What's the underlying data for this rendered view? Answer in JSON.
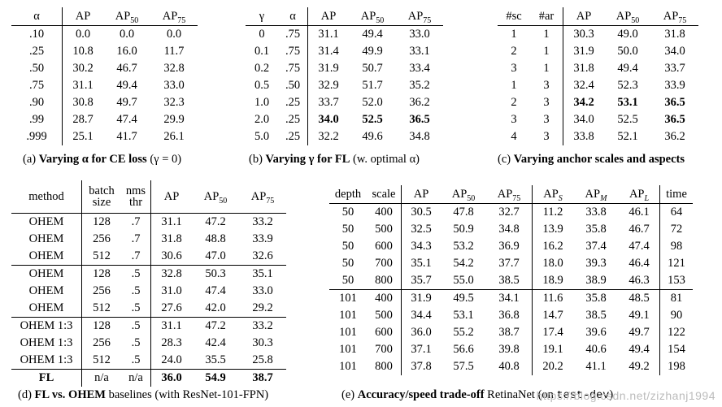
{
  "table_a": {
    "headers": [
      "α",
      "AP",
      "AP50",
      "AP75"
    ],
    "rows": [
      [
        ".10",
        "0.0",
        "0.0",
        "0.0"
      ],
      [
        ".25",
        "10.8",
        "16.0",
        "11.7"
      ],
      [
        ".50",
        "30.2",
        "46.7",
        "32.8"
      ],
      [
        ".75",
        "31.1",
        "49.4",
        "33.0"
      ],
      [
        ".90",
        "30.8",
        "49.7",
        "32.3"
      ],
      [
        ".99",
        "28.7",
        "47.4",
        "29.9"
      ],
      [
        ".999",
        "25.1",
        "41.7",
        "26.1"
      ]
    ],
    "caption_prefix": "(a) ",
    "caption_bold": "Varying α for CE loss",
    "caption_rest": " (γ = 0)"
  },
  "table_b": {
    "headers": [
      "γ",
      "α",
      "AP",
      "AP50",
      "AP75"
    ],
    "rows": [
      [
        "0",
        ".75",
        "31.1",
        "49.4",
        "33.0"
      ],
      [
        "0.1",
        ".75",
        "31.4",
        "49.9",
        "33.1"
      ],
      [
        "0.2",
        ".75",
        "31.9",
        "50.7",
        "33.4"
      ],
      [
        "0.5",
        ".50",
        "32.9",
        "51.7",
        "35.2"
      ],
      [
        "1.0",
        ".25",
        "33.7",
        "52.0",
        "36.2"
      ],
      [
        "2.0",
        ".25",
        "34.0",
        "52.5",
        "36.5"
      ],
      [
        "5.0",
        ".25",
        "32.2",
        "49.6",
        "34.8"
      ]
    ],
    "caption_prefix": "(b) ",
    "caption_bold": "Varying γ for FL",
    "caption_rest": " (w. optimal α)"
  },
  "table_c": {
    "headers": [
      "#sc",
      "#ar",
      "AP",
      "AP50",
      "AP75"
    ],
    "rows": [
      [
        "1",
        "1",
        "30.3",
        "49.0",
        "31.8"
      ],
      [
        "2",
        "1",
        "31.9",
        "50.0",
        "34.0"
      ],
      [
        "3",
        "1",
        "31.8",
        "49.4",
        "33.7"
      ],
      [
        "1",
        "3",
        "32.4",
        "52.3",
        "33.9"
      ],
      [
        "2",
        "3",
        "34.2",
        "53.1",
        "36.5"
      ],
      [
        "3",
        "3",
        "34.0",
        "52.5",
        "36.5"
      ],
      [
        "4",
        "3",
        "33.8",
        "52.1",
        "36.2"
      ]
    ],
    "caption_prefix": "(c) ",
    "caption_bold": "Varying anchor scales and aspects",
    "caption_rest": ""
  },
  "table_d": {
    "headers": [
      "method",
      "batch size",
      "nms thr",
      "AP",
      "AP50",
      "AP75"
    ],
    "rows": [
      [
        "OHEM",
        "128",
        ".7",
        "31.1",
        "47.2",
        "33.2"
      ],
      [
        "OHEM",
        "256",
        ".7",
        "31.8",
        "48.8",
        "33.9"
      ],
      [
        "OHEM",
        "512",
        ".7",
        "30.6",
        "47.0",
        "32.6"
      ],
      [
        "OHEM",
        "128",
        ".5",
        "32.8",
        "50.3",
        "35.1"
      ],
      [
        "OHEM",
        "256",
        ".5",
        "31.0",
        "47.4",
        "33.0"
      ],
      [
        "OHEM",
        "512",
        ".5",
        "27.6",
        "42.0",
        "29.2"
      ],
      [
        "OHEM 1:3",
        "128",
        ".5",
        "31.1",
        "47.2",
        "33.2"
      ],
      [
        "OHEM 1:3",
        "256",
        ".5",
        "28.3",
        "42.4",
        "30.3"
      ],
      [
        "OHEM 1:3",
        "512",
        ".5",
        "24.0",
        "35.5",
        "25.8"
      ],
      [
        "FL",
        "n/a",
        "n/a",
        "36.0",
        "54.9",
        "38.7"
      ]
    ],
    "caption_prefix": "(d) ",
    "caption_bold": "FL vs. OHEM",
    "caption_rest": " baselines (with ResNet-101-FPN)"
  },
  "table_e": {
    "headers": [
      "depth",
      "scale",
      "AP",
      "AP50",
      "AP75",
      "APS",
      "APM",
      "APL",
      "time"
    ],
    "rows": [
      [
        "50",
        "400",
        "30.5",
        "47.8",
        "32.7",
        "11.2",
        "33.8",
        "46.1",
        "64"
      ],
      [
        "50",
        "500",
        "32.5",
        "50.9",
        "34.8",
        "13.9",
        "35.8",
        "46.7",
        "72"
      ],
      [
        "50",
        "600",
        "34.3",
        "53.2",
        "36.9",
        "16.2",
        "37.4",
        "47.4",
        "98"
      ],
      [
        "50",
        "700",
        "35.1",
        "54.2",
        "37.7",
        "18.0",
        "39.3",
        "46.4",
        "121"
      ],
      [
        "50",
        "800",
        "35.7",
        "55.0",
        "38.5",
        "18.9",
        "38.9",
        "46.3",
        "153"
      ],
      [
        "101",
        "400",
        "31.9",
        "49.5",
        "34.1",
        "11.6",
        "35.8",
        "48.5",
        "81"
      ],
      [
        "101",
        "500",
        "34.4",
        "53.1",
        "36.8",
        "14.7",
        "38.5",
        "49.1",
        "90"
      ],
      [
        "101",
        "600",
        "36.0",
        "55.2",
        "38.7",
        "17.4",
        "39.6",
        "49.7",
        "122"
      ],
      [
        "101",
        "700",
        "37.1",
        "56.6",
        "39.8",
        "19.1",
        "40.6",
        "49.4",
        "154"
      ],
      [
        "101",
        "800",
        "37.8",
        "57.5",
        "40.8",
        "20.2",
        "41.1",
        "49.2",
        "198"
      ]
    ],
    "caption_prefix": "(e) ",
    "caption_bold": "Accuracy/speed trade-off",
    "caption_rest": " RetinaNet (on ",
    "caption_mono": "test-dev",
    "caption_end": ")"
  },
  "watermark": "https://blog.csdn.net/zizhanj1994"
}
